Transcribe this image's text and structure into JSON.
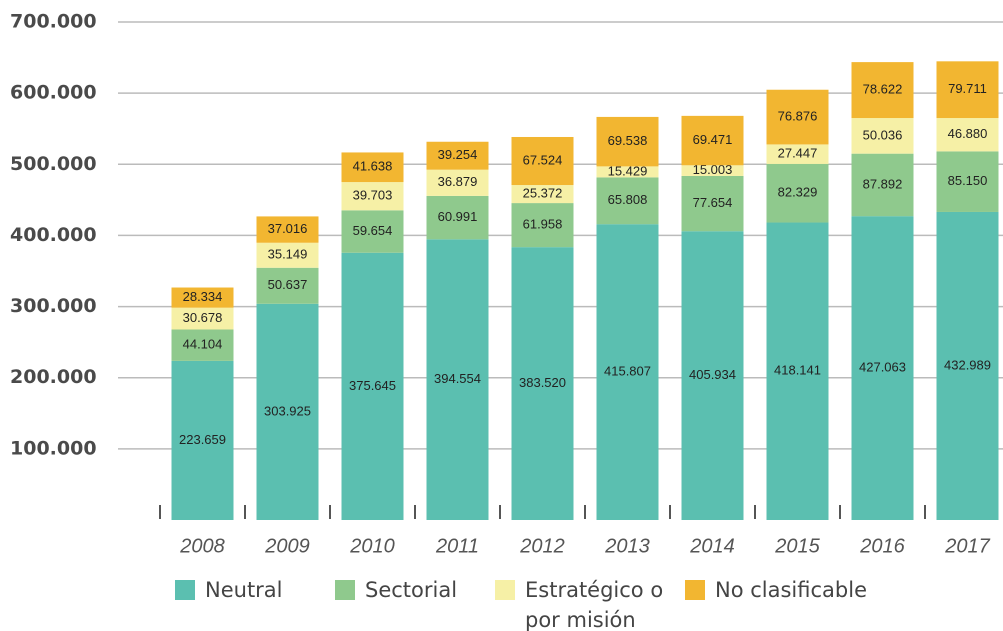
{
  "chart_data": {
    "type": "stacked_bar",
    "categories": [
      "2008",
      "2009",
      "2010",
      "2011",
      "2012",
      "2013",
      "2014",
      "2015",
      "2016",
      "2017"
    ],
    "series": [
      {
        "name": "Neutral",
        "color": "#5bbfb0",
        "values": [
          223659,
          303925,
          375645,
          394554,
          383520,
          415807,
          405934,
          418141,
          427063,
          432989
        ],
        "value_labels": [
          "223.659",
          "303.925",
          "375.645",
          "394.554",
          "383.520",
          "415.807",
          "405.934",
          "418.141",
          "427.063",
          "432.989"
        ]
      },
      {
        "name": "Sectorial",
        "color": "#8fc98d",
        "values": [
          44104,
          50637,
          59654,
          60991,
          61958,
          65808,
          77654,
          82329,
          87892,
          85150
        ],
        "value_labels": [
          "44.104",
          "50.637",
          "59.654",
          "60.991",
          "61.958",
          "65.808",
          "77.654",
          "82.329",
          "87.892",
          "85.150"
        ]
      },
      {
        "name": "Estratégico o por misión",
        "color": "#f6f0a6",
        "values": [
          30678,
          35149,
          39703,
          36879,
          25372,
          15429,
          15003,
          27447,
          50036,
          46880
        ],
        "value_labels": [
          "30.678",
          "35.149",
          "39.703",
          "36.879",
          "25.372",
          "15.429",
          "15.003",
          "27.447",
          "50.036",
          "46.880"
        ]
      },
      {
        "name": "No clasificable",
        "color": "#f2b631",
        "values": [
          28334,
          37016,
          41638,
          39254,
          67524,
          69538,
          69471,
          76876,
          78622,
          79711
        ],
        "value_labels": [
          "28.334",
          "37.016",
          "41.638",
          "39.254",
          "67.524",
          "69.538",
          "69.471",
          "76.876",
          "78.622",
          "79.711"
        ]
      }
    ],
    "ylim": [
      0,
      700000
    ],
    "yticks": [
      {
        "value": 100000,
        "label": "100.000"
      },
      {
        "value": 200000,
        "label": "200.000"
      },
      {
        "value": 300000,
        "label": "300.000"
      },
      {
        "value": 400000,
        "label": "400.000"
      },
      {
        "value": 500000,
        "label": "500.000"
      },
      {
        "value": 600000,
        "label": "600.000"
      },
      {
        "value": 700000,
        "label": "700.000"
      }
    ],
    "grid": true
  }
}
